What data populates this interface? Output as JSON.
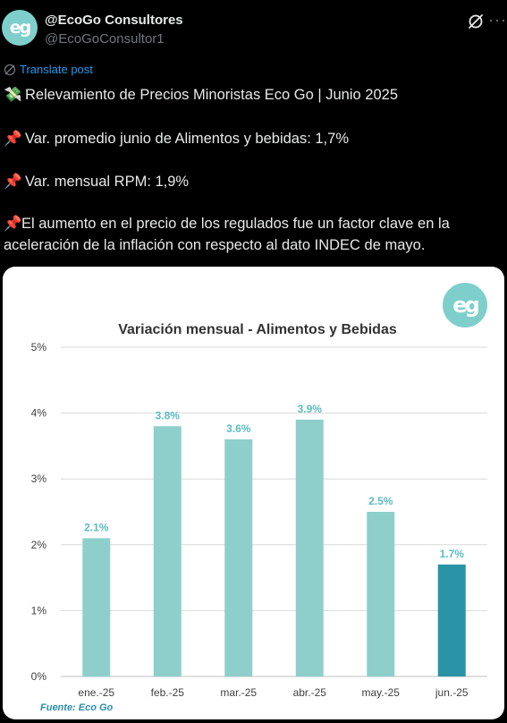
{
  "account": {
    "display_name": "@EcoGo Consultores",
    "handle": "@EcoGoConsultor1",
    "avatar_text": "eg"
  },
  "icons": {
    "grok": "grok-icon",
    "more": "more-dots-icon",
    "translate": "globe-icon"
  },
  "translate_label": "Translate post",
  "post": {
    "line1": "Relevamiento de Precios Minoristas Eco Go | Junio 2025",
    "line2": "Var. promedio junio de Alimentos y bebidas: 1,7%",
    "line3": "Var. mensual RPM: 1,9%",
    "line4a": "El aumento en el precio de los regulados fue un factor clave en la",
    "line4b": "aceleración de la inflación con respecto al dato INDEC de mayo."
  },
  "emojis": {
    "money": "💸",
    "pin": "📌"
  },
  "colors": {
    "bar": "#8ecfcc",
    "bar_highlight": "#2a93a5",
    "label": "#5bbcc0",
    "link": "#1d9bf0"
  },
  "card": {
    "logo_text": "eg",
    "source": "Fuente: Eco Go"
  },
  "chart_data": {
    "type": "bar",
    "title": "Variación mensual - Alimentos y Bebidas",
    "categories": [
      "ene.-25",
      "feb.-25",
      "mar.-25",
      "abr.-25",
      "may.-25",
      "jun.-25"
    ],
    "values": [
      2.1,
      3.8,
      3.6,
      3.9,
      2.5,
      1.7
    ],
    "value_labels": [
      "2.1%",
      "3.8%",
      "3.6%",
      "3.9%",
      "2.5%",
      "1.7%"
    ],
    "highlight_index": 5,
    "yticks": [
      "0%",
      "1%",
      "2%",
      "3%",
      "4%",
      "5%"
    ],
    "ylim": [
      0,
      5
    ],
    "grid": true,
    "xlabel": "",
    "ylabel": ""
  }
}
